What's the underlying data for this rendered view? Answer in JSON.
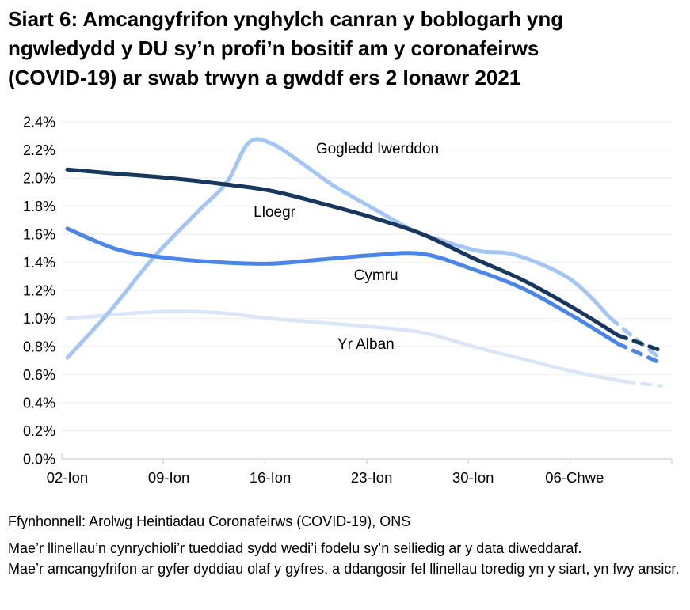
{
  "title": {
    "lines": [
      "Siart 6: Amcangyfrifon ynghylch canran y boblogarh yng",
      "ngwledydd y DU sy’n profi’n bositif am y coronafeirws",
      "(COVID-19) ar swab trwyn a gwddf ers 2 Ionawr 2021"
    ]
  },
  "chart_data": {
    "type": "line",
    "title": "Siart 6: Amcangyfrifon ynghylch canran y boblogarh yng ngwledydd y DU sy’n profi’n bositif am y coronafeirws (COVID-19) ar swab trwyn a gwddf ers 2 Ionawr 2021",
    "xlabel": "",
    "ylabel": "",
    "x_unit": "diwrnodau ers 2 Ionawr 2021",
    "x_range_days": [
      0,
      41
    ],
    "x_tick_days": [
      0,
      7,
      14,
      21,
      28,
      35
    ],
    "x_tick_labels": [
      "02-Ion",
      "09-Ion",
      "16-Ion",
      "23-Ion",
      "30-Ion",
      "06-Chwe"
    ],
    "ylim": [
      0,
      2.4
    ],
    "y_tick_step": 0.2,
    "y_tick_labels": [
      "0.0%",
      "0.2%",
      "0.4%",
      "0.6%",
      "0.8%",
      "1.0%",
      "1.2%",
      "1.4%",
      "1.6%",
      "1.8%",
      "2.0%",
      "2.2%",
      "2.4%"
    ],
    "grid": true,
    "grid_color": "#f1f1f1",
    "axis_color": "#d9d9d9",
    "text_color": "#000000",
    "legend_position": "inline-labels",
    "dashed_note": "llinellau toredig = amcangyfrifon mwy ansicr ar gyfer dyddiau olaf y gyfres",
    "series": [
      {
        "name": "Yr Alban",
        "color": "#d9e5f8",
        "width": 4.5,
        "dash_from_day": 38.5,
        "days": [
          0,
          3.5,
          7,
          10.5,
          14,
          17.5,
          21,
          24.5,
          28,
          31.5,
          35,
          38.5,
          41
        ],
        "values": [
          1.0,
          1.03,
          1.05,
          1.04,
          1.0,
          0.97,
          0.94,
          0.9,
          0.8,
          0.71,
          0.62,
          0.55,
          0.52
        ],
        "label": {
          "text": "Yr Alban",
          "day": 20.6,
          "value": 0.82
        }
      },
      {
        "name": "Gogledd Iwerddon",
        "color": "#a4c6f5",
        "width": 5,
        "dash_from_day": 37.5,
        "days": [
          0,
          3,
          6,
          9,
          11,
          12.5,
          14,
          16,
          18.3,
          21,
          23.8,
          26,
          28.4,
          31,
          34.7,
          37.5,
          39.5,
          41
        ],
        "values": [
          0.72,
          1.06,
          1.44,
          1.76,
          1.97,
          2.25,
          2.25,
          2.12,
          1.95,
          1.79,
          1.63,
          1.55,
          1.48,
          1.45,
          1.28,
          1.0,
          0.83,
          0.71
        ],
        "label": {
          "text": "Gogledd Iwerddon",
          "day": 21.4,
          "value": 2.21
        }
      },
      {
        "name": "Cymru",
        "color": "#4a86e8",
        "width": 5,
        "dash_from_day": 38,
        "days": [
          0,
          3.5,
          7,
          10.5,
          14,
          17.5,
          21,
          24.5,
          28,
          31.5,
          35,
          38,
          41
        ],
        "values": [
          1.64,
          1.49,
          1.43,
          1.4,
          1.39,
          1.42,
          1.45,
          1.46,
          1.35,
          1.21,
          1.01,
          0.82,
          0.68
        ],
        "label": {
          "text": "Cymru",
          "day": 21.3,
          "value": 1.31
        }
      },
      {
        "name": "Lloegr",
        "color": "#17375e",
        "width": 5,
        "dash_from_day": 38,
        "days": [
          0,
          3.5,
          7,
          10.5,
          14,
          17.5,
          21,
          24.5,
          28,
          31.5,
          35,
          38,
          41
        ],
        "values": [
          2.06,
          2.03,
          2.0,
          1.96,
          1.91,
          1.82,
          1.72,
          1.6,
          1.43,
          1.27,
          1.07,
          0.88,
          0.77
        ],
        "label": {
          "text": "Lloegr",
          "day": 14.3,
          "value": 1.76
        }
      }
    ]
  },
  "footer": {
    "source": "Ffynhonnell: Arolwg Heintiadau Coronafeirws (COVID-19), ONS",
    "note_lines": [
      "Mae’r llinellau’n cynrychioli’r tueddiad sydd wedi’i fodelu sy’n seiliedig ar y data diweddaraf.",
      "Mae’r amcangyfrifon ar gyfer dyddiau olaf y gyfres, a ddangosir fel llinellau toredig yn y siart, yn fwy ansicr."
    ]
  }
}
